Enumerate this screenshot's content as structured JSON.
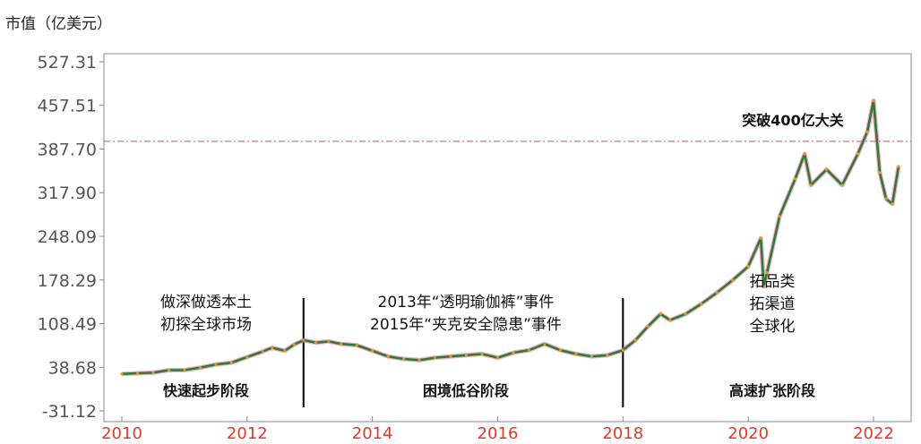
{
  "chart_data": {
    "type": "line",
    "ylabel": "市值（亿美元）",
    "y_ticks": [
      "527.31",
      "457.51",
      "387.70",
      "317.90",
      "248.09",
      "178.29",
      "108.49",
      "38.68",
      "-31.12"
    ],
    "y_tick_values": [
      527.31,
      457.51,
      387.7,
      317.9,
      248.09,
      178.29,
      108.49,
      38.68,
      -31.12
    ],
    "ylim": [
      -31.12,
      527.31
    ],
    "x_ticks": [
      "2010",
      "2012",
      "2014",
      "2016",
      "2018",
      "2020",
      "2022"
    ],
    "x_tick_values": [
      2010,
      2012,
      2014,
      2016,
      2018,
      2020,
      2022
    ],
    "xlim": [
      2009.85,
      2022.45
    ],
    "threshold": {
      "value": 400,
      "label": "突破400亿大关",
      "color": "#d94a4a"
    },
    "phase_dividers": [
      2012.9,
      2018.0
    ],
    "phases": [
      {
        "label": "快速起步阶段",
        "notes": [
          "做深做透本土",
          "初探全球市场"
        ]
      },
      {
        "label": "困境低谷阶段",
        "notes": [
          "2013年“透明瑜伽裤”事件",
          "2015年“夹克安全隐患”事件"
        ]
      },
      {
        "label": "高速扩张阶段",
        "notes": [
          "拓品类",
          "拓渠道",
          "全球化"
        ]
      }
    ],
    "series": [
      {
        "color": "#2f7a3a",
        "x": [
          2010.0,
          2010.25,
          2010.5,
          2010.75,
          2011.0,
          2011.25,
          2011.5,
          2011.75,
          2012.0,
          2012.25,
          2012.4,
          2012.6,
          2012.75,
          2012.9,
          2013.1,
          2013.3,
          2013.5,
          2013.75,
          2014.0,
          2014.25,
          2014.5,
          2014.75,
          2015.0,
          2015.25,
          2015.5,
          2015.75,
          2016.0,
          2016.25,
          2016.5,
          2016.75,
          2017.0,
          2017.25,
          2017.5,
          2017.75,
          2018.0,
          2018.2,
          2018.4,
          2018.6,
          2018.75,
          2019.0,
          2019.25,
          2019.5,
          2019.75,
          2020.0,
          2020.2,
          2020.25,
          2020.3,
          2020.5,
          2020.75,
          2020.9,
          2021.0,
          2021.25,
          2021.5,
          2021.75,
          2021.9,
          2022.0,
          2022.1,
          2022.2,
          2022.3,
          2022.4
        ],
        "values": [
          28,
          29,
          30,
          34,
          34,
          38,
          43,
          46,
          55,
          64,
          70,
          65,
          75,
          82,
          78,
          80,
          76,
          74,
          65,
          56,
          52,
          50,
          54,
          56,
          58,
          60,
          54,
          62,
          66,
          76,
          66,
          60,
          56,
          58,
          66,
          82,
          104,
          124,
          114,
          124,
          140,
          158,
          178,
          200,
          245,
          168,
          190,
          280,
          340,
          380,
          330,
          355,
          330,
          380,
          415,
          465,
          350,
          308,
          300,
          360
        ]
      }
    ]
  }
}
